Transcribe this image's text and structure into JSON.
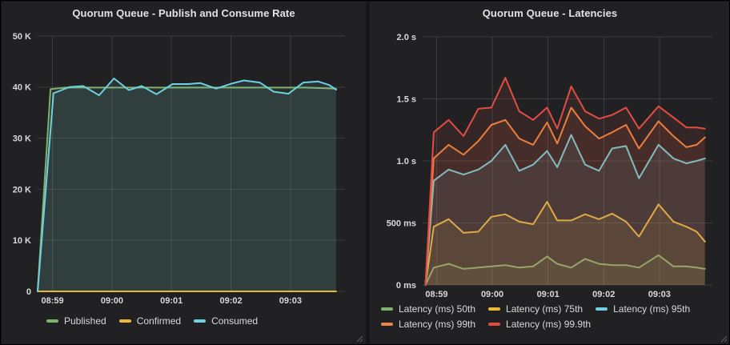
{
  "page": {
    "background": "#141619",
    "panel_background": "#212124",
    "grid_color": "rgba(255,255,255,0.12)",
    "tick_text_color": "#d8d9da"
  },
  "chart_data": [
    {
      "type": "line",
      "title": "Quorum Queue - Publish and Consume Rate",
      "xlabel": "",
      "ylabel": "",
      "x_domain": [
        0,
        310
      ],
      "x_ticks": [
        {
          "t": 15,
          "label": "08:59"
        },
        {
          "t": 75,
          "label": "09:00"
        },
        {
          "t": 135,
          "label": "09:01"
        },
        {
          "t": 195,
          "label": "09:02"
        },
        {
          "t": 255,
          "label": "09:03"
        }
      ],
      "ylim": [
        0,
        50000
      ],
      "y_ticks": [
        {
          "v": 0,
          "label": "0"
        },
        {
          "v": 10000,
          "label": "10 K"
        },
        {
          "v": 20000,
          "label": "20 K"
        },
        {
          "v": 30000,
          "label": "30 K"
        },
        {
          "v": 40000,
          "label": "40 K"
        },
        {
          "v": 50000,
          "label": "50 K"
        }
      ],
      "grid": true,
      "legend_position": "bottom-left",
      "fill_opacity": 0.1,
      "line_width": 2,
      "series": [
        {
          "name": "Published",
          "color": "#7EB26D",
          "points": [
            [
              0,
              0
            ],
            [
              13,
              39600
            ],
            [
              28,
              39900
            ],
            [
              60,
              39900
            ],
            [
              90,
              39900
            ],
            [
              120,
              39900
            ],
            [
              150,
              39900
            ],
            [
              180,
              39900
            ],
            [
              210,
              39900
            ],
            [
              240,
              39900
            ],
            [
              270,
              39900
            ],
            [
              301,
              39700
            ]
          ]
        },
        {
          "name": "Confirmed",
          "color": "#EAB839",
          "points": [
            [
              0,
              0
            ],
            [
              301,
              0
            ]
          ]
        },
        {
          "name": "Consumed",
          "color": "#6ED0E0",
          "points": [
            [
              0,
              0
            ],
            [
              16,
              38800
            ],
            [
              32,
              40000
            ],
            [
              46,
              40200
            ],
            [
              62,
              38400
            ],
            [
              77,
              41700
            ],
            [
              92,
              39400
            ],
            [
              105,
              40200
            ],
            [
              120,
              38600
            ],
            [
              136,
              40600
            ],
            [
              152,
              40600
            ],
            [
              164,
              40800
            ],
            [
              180,
              39700
            ],
            [
              196,
              40700
            ],
            [
              208,
              41300
            ],
            [
              224,
              40900
            ],
            [
              238,
              39100
            ],
            [
              253,
              38700
            ],
            [
              268,
              40900
            ],
            [
              283,
              41100
            ],
            [
              294,
              40400
            ],
            [
              301,
              39500
            ]
          ]
        }
      ]
    },
    {
      "type": "line",
      "title": "Quorum Queue - Latencies",
      "xlabel": "",
      "ylabel": "",
      "x_domain": [
        0,
        312
      ],
      "x_ticks": [
        {
          "t": 15,
          "label": "08:59"
        },
        {
          "t": 75,
          "label": "09:00"
        },
        {
          "t": 135,
          "label": "09:01"
        },
        {
          "t": 195,
          "label": "09:02"
        },
        {
          "t": 255,
          "label": "09:03"
        }
      ],
      "ylim": [
        0,
        2000
      ],
      "y_ticks": [
        {
          "v": 0,
          "label": "0 ms"
        },
        {
          "v": 500,
          "label": "500 ms"
        },
        {
          "v": 1000,
          "label": "1.0 s"
        },
        {
          "v": 1500,
          "label": "1.5 s"
        },
        {
          "v": 2000,
          "label": "2.0 s"
        }
      ],
      "grid": true,
      "legend_position": "bottom-left",
      "fill_opacity": 0.1,
      "line_width": 2,
      "series": [
        {
          "name": "Latency (ms) 50th",
          "color": "#7EB26D",
          "points": [
            [
              3,
              0
            ],
            [
              12,
              140
            ],
            [
              28,
              170
            ],
            [
              44,
              130
            ],
            [
              60,
              140
            ],
            [
              74,
              150
            ],
            [
              89,
              160
            ],
            [
              104,
              140
            ],
            [
              119,
              150
            ],
            [
              134,
              230
            ],
            [
              145,
              170
            ],
            [
              160,
              140
            ],
            [
              175,
              210
            ],
            [
              190,
              170
            ],
            [
              204,
              160
            ],
            [
              219,
              160
            ],
            [
              233,
              140
            ],
            [
              254,
              240
            ],
            [
              270,
              150
            ],
            [
              284,
              150
            ],
            [
              295,
              140
            ],
            [
              304,
              130
            ]
          ]
        },
        {
          "name": "Latency (ms) 75th",
          "color": "#EAB839",
          "points": [
            [
              3,
              0
            ],
            [
              12,
              470
            ],
            [
              28,
              530
            ],
            [
              44,
              420
            ],
            [
              60,
              430
            ],
            [
              74,
              550
            ],
            [
              89,
              570
            ],
            [
              104,
              510
            ],
            [
              119,
              490
            ],
            [
              134,
              670
            ],
            [
              145,
              520
            ],
            [
              160,
              520
            ],
            [
              175,
              570
            ],
            [
              190,
              530
            ],
            [
              204,
              575
            ],
            [
              219,
              510
            ],
            [
              233,
              390
            ],
            [
              254,
              650
            ],
            [
              270,
              510
            ],
            [
              284,
              470
            ],
            [
              295,
              430
            ],
            [
              304,
              350
            ]
          ]
        },
        {
          "name": "Latency (ms) 95th",
          "color": "#6ED0E0",
          "points": [
            [
              3,
              0
            ],
            [
              12,
              840
            ],
            [
              28,
              930
            ],
            [
              44,
              890
            ],
            [
              60,
              930
            ],
            [
              74,
              1000
            ],
            [
              89,
              1130
            ],
            [
              104,
              920
            ],
            [
              119,
              970
            ],
            [
              134,
              1080
            ],
            [
              145,
              950
            ],
            [
              160,
              1210
            ],
            [
              175,
              970
            ],
            [
              190,
              920
            ],
            [
              204,
              1100
            ],
            [
              219,
              1120
            ],
            [
              233,
              860
            ],
            [
              254,
              1130
            ],
            [
              270,
              1020
            ],
            [
              284,
              980
            ],
            [
              295,
              1000
            ],
            [
              304,
              1020
            ]
          ]
        },
        {
          "name": "Latency (ms) 99th",
          "color": "#EF843C",
          "points": [
            [
              3,
              0
            ],
            [
              12,
              1020
            ],
            [
              28,
              1130
            ],
            [
              44,
              1050
            ],
            [
              60,
              1160
            ],
            [
              74,
              1290
            ],
            [
              89,
              1330
            ],
            [
              104,
              1180
            ],
            [
              119,
              1130
            ],
            [
              134,
              1310
            ],
            [
              145,
              1140
            ],
            [
              160,
              1430
            ],
            [
              175,
              1280
            ],
            [
              190,
              1180
            ],
            [
              204,
              1230
            ],
            [
              219,
              1290
            ],
            [
              233,
              1100
            ],
            [
              254,
              1320
            ],
            [
              270,
              1200
            ],
            [
              284,
              1110
            ],
            [
              295,
              1130
            ],
            [
              304,
              1190
            ]
          ]
        },
        {
          "name": "Latency (ms) 99.9th",
          "color": "#E24D42",
          "points": [
            [
              3,
              0
            ],
            [
              12,
              1230
            ],
            [
              28,
              1330
            ],
            [
              44,
              1200
            ],
            [
              60,
              1420
            ],
            [
              74,
              1430
            ],
            [
              89,
              1670
            ],
            [
              104,
              1400
            ],
            [
              119,
              1330
            ],
            [
              134,
              1430
            ],
            [
              145,
              1260
            ],
            [
              160,
              1600
            ],
            [
              175,
              1400
            ],
            [
              190,
              1340
            ],
            [
              204,
              1370
            ],
            [
              219,
              1430
            ],
            [
              233,
              1260
            ],
            [
              254,
              1440
            ],
            [
              270,
              1350
            ],
            [
              284,
              1270
            ],
            [
              295,
              1270
            ],
            [
              304,
              1260
            ]
          ]
        }
      ]
    }
  ]
}
